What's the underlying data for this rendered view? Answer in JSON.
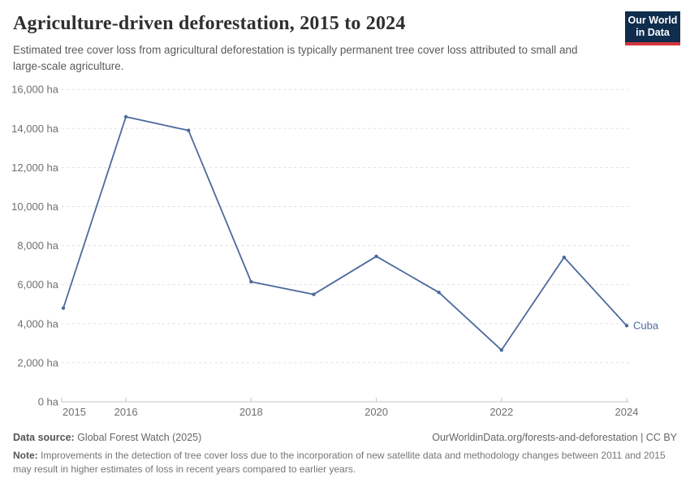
{
  "header": {
    "title": "Agriculture-driven deforestation, 2015 to 2024",
    "subtitle": "Estimated tree cover loss from agricultural deforestation is typically permanent tree cover loss attributed to small and large-scale agriculture.",
    "logo": {
      "line1": "Our World",
      "line2": "in Data",
      "bg_color": "#102d4e",
      "accent_color": "#d2343b"
    }
  },
  "chart_data": {
    "type": "line",
    "title": "Agriculture-driven deforestation, 2015 to 2024",
    "xlabel": "",
    "ylabel": "",
    "x": [
      2015,
      2016,
      2017,
      2018,
      2019,
      2020,
      2021,
      2022,
      2023,
      2024
    ],
    "series": [
      {
        "name": "Cuba",
        "values": [
          4800,
          14600,
          13900,
          6150,
          5500,
          7450,
          5600,
          2650,
          7400,
          3900
        ]
      }
    ],
    "end_label": "Cuba",
    "ylim": [
      0,
      16000
    ],
    "ytick_step": 2000,
    "ytick_suffix": " ha",
    "xticks": [
      2015,
      2016,
      2018,
      2020,
      2022,
      2024
    ],
    "grid": "horizontal-dashed",
    "legend_position": "end-of-line",
    "colors": {
      "line": "#4c6a9c",
      "grid": "#e3e3e3",
      "axis": "#c4c4c4",
      "tick_label": "#6f6f6f"
    }
  },
  "footer": {
    "source_label": "Data source:",
    "source_value": " Global Forest Watch (2025)",
    "attribution": "OurWorldinData.org/forests-and-deforestation | CC BY",
    "note_label": "Note:",
    "note_value": " Improvements in the detection of tree cover loss due to the incorporation of new satellite data and methodology changes between 2011 and 2015 may result in higher estimates of loss in recent years compared to earlier years."
  }
}
